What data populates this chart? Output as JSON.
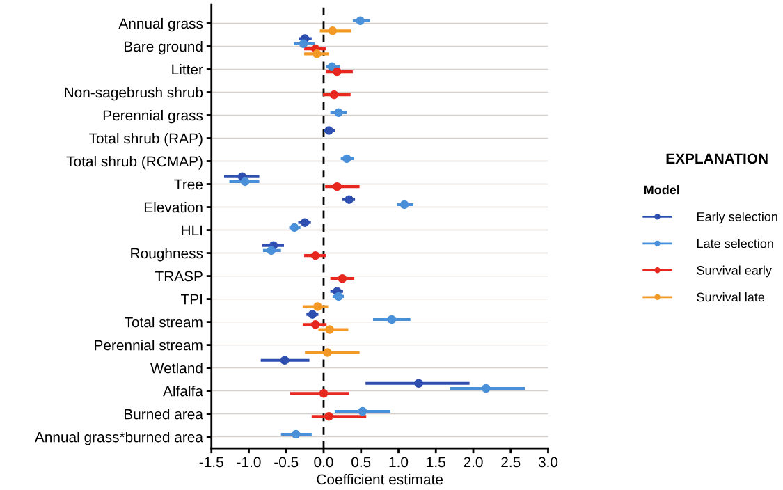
{
  "chart_data": {
    "type": "scatter",
    "orientation": "horizontal",
    "xlabel": "Coefficient estimate",
    "legend_title": "Model",
    "annotations": [
      "EXPLANATION"
    ],
    "categories": [
      "Annual grass",
      "Bare ground",
      "Litter",
      "Non-sagebrush shrub",
      "Perennial grass",
      "Total shrub (RAP)",
      "Total shrub (RCMAP)",
      "Tree",
      "Elevation",
      "HLI",
      "Roughness",
      "TRASP",
      "TPI",
      "Total stream",
      "Perennial stream",
      "Wetland",
      "Alfalfa",
      "Burned area",
      "Annual grass*burned area"
    ],
    "series": [
      {
        "name": "Early selection",
        "color": "#2e4fb0",
        "values": [
          null,
          -0.25,
          null,
          null,
          null,
          0.07,
          null,
          -1.09,
          0.34,
          -0.25,
          -0.67,
          null,
          0.18,
          -0.15,
          null,
          -0.52,
          1.27,
          null,
          null
        ],
        "errors": [
          null,
          [
            -0.33,
            -0.16
          ],
          null,
          null,
          null,
          [
            0.0,
            0.15
          ],
          null,
          [
            -1.33,
            -0.86
          ],
          [
            0.25,
            0.42
          ],
          [
            -0.34,
            -0.17
          ],
          [
            -0.82,
            -0.53
          ],
          null,
          [
            0.09,
            0.26
          ],
          [
            -0.23,
            -0.07
          ],
          null,
          [
            -0.84,
            -0.19
          ],
          [
            0.56,
            1.95
          ],
          null,
          null
        ]
      },
      {
        "name": "Late selection",
        "color": "#4a90d9",
        "values": [
          0.49,
          -0.27,
          0.11,
          null,
          0.2,
          null,
          0.31,
          -1.05,
          1.08,
          -0.39,
          -0.7,
          null,
          0.2,
          0.91,
          null,
          null,
          2.17,
          0.52,
          -0.37
        ],
        "errors": [
          [
            0.39,
            0.62
          ],
          [
            -0.4,
            -0.12
          ],
          [
            0.03,
            0.22
          ],
          null,
          [
            0.09,
            0.31
          ],
          null,
          [
            0.23,
            0.4
          ],
          [
            -1.26,
            -0.86
          ],
          [
            0.98,
            1.2
          ],
          [
            -0.46,
            -0.31
          ],
          [
            -0.81,
            -0.57
          ],
          null,
          [
            0.12,
            0.27
          ],
          [
            0.66,
            1.16
          ],
          null,
          null,
          [
            1.69,
            2.69
          ],
          [
            0.15,
            0.89
          ],
          [
            -0.57,
            -0.16
          ]
        ]
      },
      {
        "name": "Survival early",
        "color": "#e8281e",
        "values": [
          null,
          -0.11,
          0.18,
          0.14,
          null,
          null,
          null,
          0.18,
          null,
          null,
          -0.11,
          0.25,
          null,
          -0.11,
          null,
          null,
          0.0,
          0.07,
          null
        ],
        "errors": [
          null,
          [
            -0.26,
            0.03
          ],
          [
            0.03,
            0.39
          ],
          [
            -0.01,
            0.36
          ],
          null,
          null,
          null,
          [
            0.02,
            0.48
          ],
          null,
          null,
          [
            -0.26,
            0.03
          ],
          [
            0.09,
            0.41
          ],
          null,
          [
            -0.28,
            0.04
          ],
          null,
          null,
          [
            -0.45,
            0.34
          ],
          [
            -0.16,
            0.57
          ],
          null
        ]
      },
      {
        "name": "Survival late",
        "color": "#f39a26",
        "values": [
          0.12,
          -0.09,
          null,
          null,
          null,
          null,
          null,
          null,
          null,
          null,
          null,
          null,
          -0.08,
          0.08,
          0.05,
          null,
          null,
          null,
          null
        ],
        "errors": [
          [
            -0.05,
            0.37
          ],
          [
            -0.26,
            0.07
          ],
          null,
          null,
          null,
          null,
          null,
          null,
          null,
          null,
          null,
          null,
          [
            -0.28,
            0.06
          ],
          [
            -0.07,
            0.33
          ],
          [
            -0.25,
            0.48
          ],
          null,
          null,
          null,
          null
        ]
      }
    ],
    "xlim": [
      -1.5,
      3.0
    ],
    "xticks": [
      -1.5,
      {
        "value": -1,
        "label": "-1.0"
      },
      -0.5,
      {
        "value": 0,
        "label": "0.0"
      },
      0.5,
      {
        "value": 1,
        "label": "1.0"
      },
      1.5,
      {
        "value": 2,
        "label": "2.0"
      },
      2.5,
      {
        "value": 3,
        "label": "3.0"
      }
    ],
    "ref_lines": [
      {
        "axis": "x",
        "value": 0,
        "color": "#000000",
        "line_style": "dashed"
      }
    ],
    "grid": "y",
    "legend": "right",
    "marker": "circle"
  }
}
